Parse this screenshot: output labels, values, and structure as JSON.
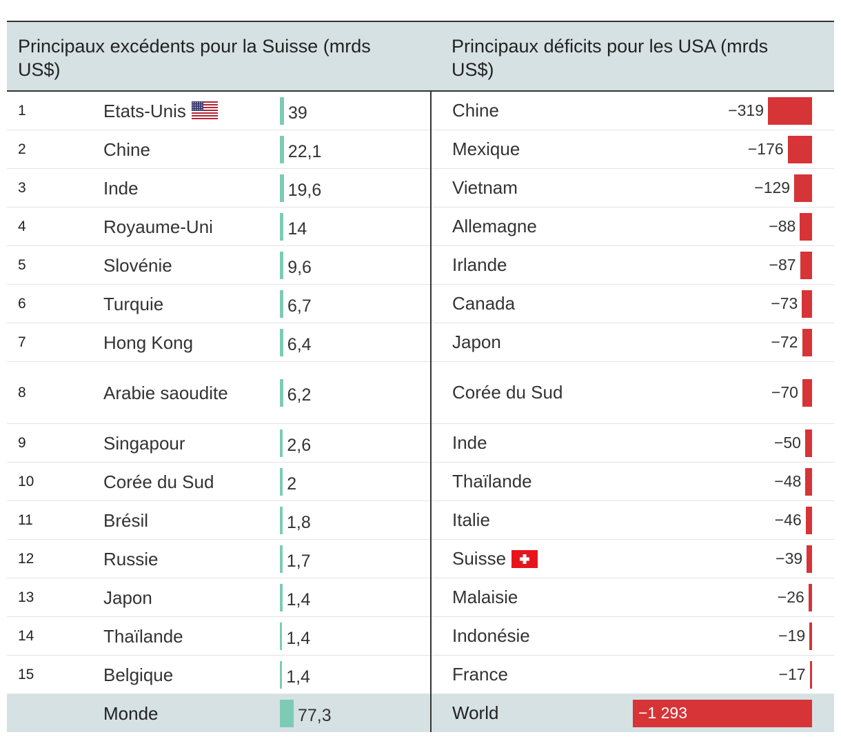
{
  "chart_data": {
    "type": "table",
    "left_title": "Principaux excédents pour la Suisse (mrds US$)",
    "right_title": "Principaux déficits pour les USA (mrds US$)",
    "surpluses_switzerland": [
      {
        "rank": "1",
        "country": "Etats-Unis",
        "label": "39",
        "value": 39,
        "flag": "us-flag-icon"
      },
      {
        "rank": "2",
        "country": "Chine",
        "label": "22,1",
        "value": 22.1
      },
      {
        "rank": "3",
        "country": "Inde",
        "label": "19,6",
        "value": 19.6
      },
      {
        "rank": "4",
        "country": "Royaume-Uni",
        "label": "14",
        "value": 14
      },
      {
        "rank": "5",
        "country": "Slovénie",
        "label": "9,6",
        "value": 9.6
      },
      {
        "rank": "6",
        "country": "Turquie",
        "label": "6,7",
        "value": 6.7
      },
      {
        "rank": "7",
        "country": "Hong Kong",
        "label": "6,4",
        "value": 6.4
      },
      {
        "rank": "8",
        "country": "Arabie saoudite",
        "label": "6,2",
        "value": 6.2
      },
      {
        "rank": "9",
        "country": "Singapour",
        "label": "2,6",
        "value": 2.6
      },
      {
        "rank": "10",
        "country": "Corée du Sud",
        "label": "2",
        "value": 2
      },
      {
        "rank": "11",
        "country": "Brésil",
        "label": "1,8",
        "value": 1.8
      },
      {
        "rank": "12",
        "country": "Russie",
        "label": "1,7",
        "value": 1.7
      },
      {
        "rank": "13",
        "country": "Japon",
        "label": "1,4",
        "value": 1.4
      },
      {
        "rank": "14",
        "country": "Thaïlande",
        "label": "1,4",
        "value": 1.4
      },
      {
        "rank": "15",
        "country": "Belgique",
        "label": "1,4",
        "value": 1.4
      }
    ],
    "deficits_usa": [
      {
        "country": "Chine",
        "label": "−319",
        "value": -319
      },
      {
        "country": "Mexique",
        "label": "−176",
        "value": -176
      },
      {
        "country": "Vietnam",
        "label": "−129",
        "value": -129
      },
      {
        "country": "Allemagne",
        "label": "−88",
        "value": -88
      },
      {
        "country": "Irlande",
        "label": "−87",
        "value": -87
      },
      {
        "country": "Canada",
        "label": "−73",
        "value": -73
      },
      {
        "country": "Japon",
        "label": "−72",
        "value": -72
      },
      {
        "country": "Corée du Sud",
        "label": "−70",
        "value": -70
      },
      {
        "country": "Inde",
        "label": "−50",
        "value": -50
      },
      {
        "country": "Thaïlande",
        "label": "−48",
        "value": -48
      },
      {
        "country": "Italie",
        "label": "−46",
        "value": -46
      },
      {
        "country": "Suisse",
        "label": "−39",
        "value": -39,
        "flag": "swiss-flag-icon"
      },
      {
        "country": "Malaisie",
        "label": "−26",
        "value": -26
      },
      {
        "country": "Indonésie",
        "label": "−19",
        "value": -19
      },
      {
        "country": "France",
        "label": "−17",
        "value": -17
      }
    ],
    "totals": {
      "left_name": "Monde",
      "left_label": "77,3",
      "left_value": 77.3,
      "right_name": "World",
      "right_label": "−1 293",
      "right_value": -1293
    },
    "colors": {
      "surplus_bar": "#7dcbb5",
      "deficit_bar": "#d63437",
      "header_bg": "#d6e1e3"
    }
  }
}
